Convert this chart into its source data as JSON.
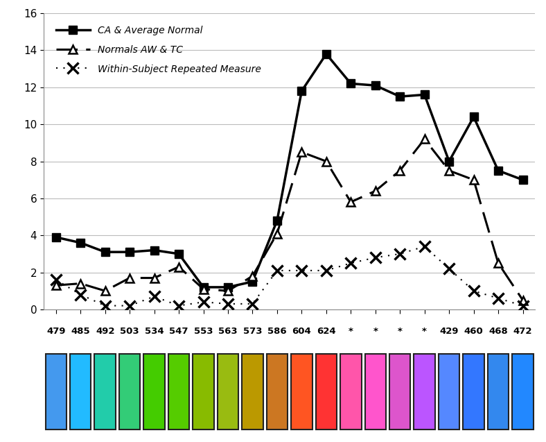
{
  "x_labels": [
    "479",
    "485",
    "492",
    "503",
    "534",
    "547",
    "553",
    "563",
    "573",
    "586",
    "604",
    "624",
    "*",
    "*",
    "*",
    "*",
    "429",
    "460",
    "468",
    "472"
  ],
  "series1_y": [
    3.9,
    3.6,
    3.1,
    3.1,
    3.2,
    3.0,
    1.2,
    1.2,
    1.5,
    4.8,
    11.8,
    13.8,
    12.2,
    12.1,
    11.5,
    11.6,
    8.0,
    10.4,
    7.5,
    7.0
  ],
  "series2_y": [
    1.3,
    1.4,
    1.0,
    1.7,
    1.7,
    2.3,
    1.1,
    1.0,
    1.8,
    4.1,
    8.5,
    8.0,
    5.8,
    6.4,
    7.5,
    9.2,
    7.5,
    7.0,
    2.5,
    0.5
  ],
  "series3_y": [
    1.6,
    0.8,
    0.2,
    0.2,
    0.7,
    0.2,
    0.4,
    0.3,
    0.3,
    2.1,
    2.1,
    2.1,
    2.5,
    2.8,
    3.0,
    3.4,
    2.2,
    1.0,
    0.6,
    0.2
  ],
  "legend1": "CA & Average Normal",
  "legend2": "Normals AW & TC",
  "legend3": "Within-Subject Repeated Measure",
  "ylim": [
    0,
    16
  ],
  "yticks": [
    0,
    2,
    4,
    6,
    8,
    10,
    12,
    14,
    16
  ],
  "color_bars": [
    "#4499ee",
    "#22bbff",
    "#22ccaa",
    "#33cc77",
    "#44cc00",
    "#55cc00",
    "#88bb00",
    "#99bb11",
    "#bb9900",
    "#cc7722",
    "#ff5522",
    "#ff3333",
    "#ff55aa",
    "#ff55cc",
    "#dd55cc",
    "#bb55ff",
    "#5588ff",
    "#3377ff",
    "#3388ee",
    "#2288ff"
  ],
  "bg_color": "#ffffff",
  "grid_color": "#bbbbbb"
}
